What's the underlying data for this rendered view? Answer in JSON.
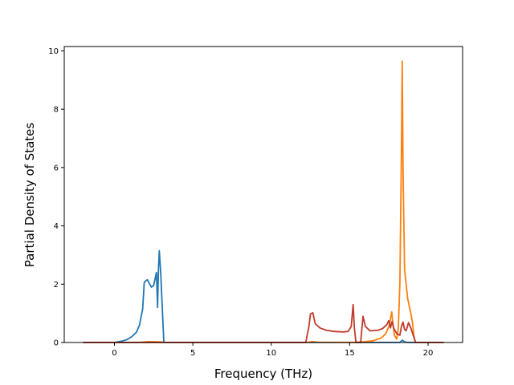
{
  "chart_data": {
    "type": "line",
    "title": "",
    "xlabel": "Frequency (THz)",
    "ylabel": "Partial Density of States",
    "xlim": [
      -3.2,
      22.2
    ],
    "ylim": [
      0,
      10.15
    ],
    "xticks": [
      0,
      5,
      10,
      15,
      20
    ],
    "yticks": [
      0,
      2,
      4,
      6,
      8,
      10
    ],
    "grid": false,
    "legend": "none",
    "series": [
      {
        "color": "#1f77b4",
        "points": [
          [
            -2,
            0
          ],
          [
            0,
            0
          ],
          [
            0.5,
            0.05
          ],
          [
            0.8,
            0.1
          ],
          [
            1.1,
            0.2
          ],
          [
            1.4,
            0.35
          ],
          [
            1.6,
            0.6
          ],
          [
            1.8,
            1.15
          ],
          [
            1.9,
            2.05
          ],
          [
            2.0,
            2.12
          ],
          [
            2.1,
            2.15
          ],
          [
            2.2,
            2.05
          ],
          [
            2.35,
            1.9
          ],
          [
            2.5,
            1.95
          ],
          [
            2.6,
            2.2
          ],
          [
            2.68,
            2.4
          ],
          [
            2.75,
            1.2
          ],
          [
            2.8,
            2.4
          ],
          [
            2.86,
            3.15
          ],
          [
            2.95,
            2.4
          ],
          [
            3.05,
            1.2
          ],
          [
            3.15,
            0
          ],
          [
            18.2,
            0
          ],
          [
            18.35,
            0.08
          ],
          [
            18.5,
            0.02
          ],
          [
            18.7,
            0
          ],
          [
            21,
            0
          ]
        ]
      },
      {
        "color": "#ff7f0e",
        "points": [
          [
            -2,
            0
          ],
          [
            1.5,
            0
          ],
          [
            2.2,
            0.03
          ],
          [
            3.0,
            0.02
          ],
          [
            3.2,
            0
          ],
          [
            12.3,
            0
          ],
          [
            12.6,
            0.03
          ],
          [
            13.0,
            0.01
          ],
          [
            15.2,
            0
          ],
          [
            16.0,
            0.03
          ],
          [
            16.5,
            0.06
          ],
          [
            17.0,
            0.15
          ],
          [
            17.3,
            0.3
          ],
          [
            17.5,
            0.55
          ],
          [
            17.6,
            0.8
          ],
          [
            17.68,
            1.05
          ],
          [
            17.75,
            0.7
          ],
          [
            17.85,
            0.25
          ],
          [
            18.0,
            0.12
          ],
          [
            18.1,
            0.5
          ],
          [
            18.2,
            2.0
          ],
          [
            18.3,
            6.5
          ],
          [
            18.35,
            9.65
          ],
          [
            18.4,
            6.0
          ],
          [
            18.5,
            2.5
          ],
          [
            18.7,
            1.5
          ],
          [
            18.9,
            1.0
          ],
          [
            19.0,
            0.7
          ],
          [
            19.1,
            0.2
          ],
          [
            19.2,
            0
          ],
          [
            21,
            0
          ]
        ]
      },
      {
        "color": "#c0392b",
        "points": [
          [
            -2,
            0
          ],
          [
            12.2,
            0
          ],
          [
            12.4,
            0.55
          ],
          [
            12.5,
            0.98
          ],
          [
            12.65,
            1.02
          ],
          [
            12.8,
            0.65
          ],
          [
            13.1,
            0.5
          ],
          [
            13.5,
            0.42
          ],
          [
            14.0,
            0.38
          ],
          [
            14.6,
            0.36
          ],
          [
            14.9,
            0.38
          ],
          [
            15.1,
            0.55
          ],
          [
            15.22,
            1.3
          ],
          [
            15.3,
            0.5
          ],
          [
            15.4,
            0
          ],
          [
            15.7,
            0
          ],
          [
            15.85,
            0.9
          ],
          [
            16.0,
            0.55
          ],
          [
            16.3,
            0.4
          ],
          [
            16.8,
            0.42
          ],
          [
            17.1,
            0.48
          ],
          [
            17.35,
            0.6
          ],
          [
            17.5,
            0.75
          ],
          [
            17.6,
            0.5
          ],
          [
            17.7,
            0.72
          ],
          [
            17.8,
            0.5
          ],
          [
            18.0,
            0.3
          ],
          [
            18.2,
            0.25
          ],
          [
            18.3,
            0.55
          ],
          [
            18.4,
            0.7
          ],
          [
            18.5,
            0.45
          ],
          [
            18.6,
            0.4
          ],
          [
            18.75,
            0.68
          ],
          [
            18.9,
            0.5
          ],
          [
            19.05,
            0.25
          ],
          [
            19.2,
            0
          ],
          [
            21,
            0
          ]
        ]
      }
    ]
  }
}
